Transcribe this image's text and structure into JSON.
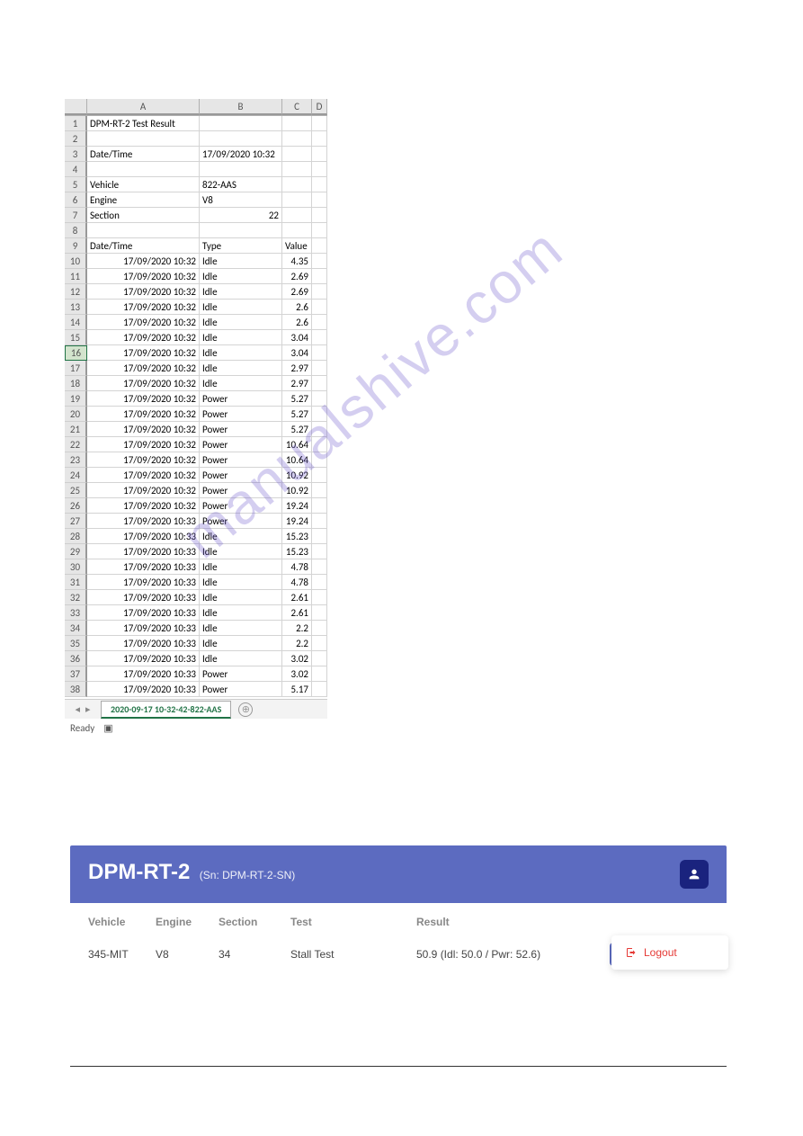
{
  "watermark": "manualshive.com",
  "spreadsheet": {
    "columns": [
      "A",
      "B",
      "C",
      "D"
    ],
    "selected_row": 16,
    "rows": [
      {
        "n": "1",
        "a": "DPM-RT-2 Test Result",
        "b": "",
        "c": "",
        "a_align": "left"
      },
      {
        "n": "2",
        "a": "",
        "b": "",
        "c": ""
      },
      {
        "n": "3",
        "a": "Date/Time",
        "b": "17/09/2020 10:32",
        "c": "",
        "a_align": "left"
      },
      {
        "n": "4",
        "a": "",
        "b": "",
        "c": ""
      },
      {
        "n": "5",
        "a": "Vehicle",
        "b": "822-AAS",
        "c": "",
        "a_align": "left"
      },
      {
        "n": "6",
        "a": "Engine",
        "b": "V8",
        "c": "",
        "a_align": "left"
      },
      {
        "n": "7",
        "a": "Section",
        "b": "22",
        "c": "",
        "a_align": "left",
        "b_align": "right"
      },
      {
        "n": "8",
        "a": "",
        "b": "",
        "c": ""
      },
      {
        "n": "9",
        "a": "Date/Time",
        "b": "Type",
        "c": "Value",
        "a_align": "left"
      },
      {
        "n": "10",
        "a": "17/09/2020 10:32",
        "b": "Idle",
        "c": "4.35",
        "a_align": "right",
        "c_align": "right"
      },
      {
        "n": "11",
        "a": "17/09/2020 10:32",
        "b": "Idle",
        "c": "2.69",
        "a_align": "right",
        "c_align": "right"
      },
      {
        "n": "12",
        "a": "17/09/2020 10:32",
        "b": "Idle",
        "c": "2.69",
        "a_align": "right",
        "c_align": "right"
      },
      {
        "n": "13",
        "a": "17/09/2020 10:32",
        "b": "Idle",
        "c": "2.6",
        "a_align": "right",
        "c_align": "right"
      },
      {
        "n": "14",
        "a": "17/09/2020 10:32",
        "b": "Idle",
        "c": "2.6",
        "a_align": "right",
        "c_align": "right"
      },
      {
        "n": "15",
        "a": "17/09/2020 10:32",
        "b": "Idle",
        "c": "3.04",
        "a_align": "right",
        "c_align": "right"
      },
      {
        "n": "16",
        "a": "17/09/2020 10:32",
        "b": "Idle",
        "c": "3.04",
        "a_align": "right",
        "c_align": "right"
      },
      {
        "n": "17",
        "a": "17/09/2020 10:32",
        "b": "Idle",
        "c": "2.97",
        "a_align": "right",
        "c_align": "right"
      },
      {
        "n": "18",
        "a": "17/09/2020 10:32",
        "b": "Idle",
        "c": "2.97",
        "a_align": "right",
        "c_align": "right"
      },
      {
        "n": "19",
        "a": "17/09/2020 10:32",
        "b": "Power",
        "c": "5.27",
        "a_align": "right",
        "c_align": "right"
      },
      {
        "n": "20",
        "a": "17/09/2020 10:32",
        "b": "Power",
        "c": "5.27",
        "a_align": "right",
        "c_align": "right"
      },
      {
        "n": "21",
        "a": "17/09/2020 10:32",
        "b": "Power",
        "c": "5.27",
        "a_align": "right",
        "c_align": "right"
      },
      {
        "n": "22",
        "a": "17/09/2020 10:32",
        "b": "Power",
        "c": "10.64",
        "a_align": "right",
        "c_align": "right"
      },
      {
        "n": "23",
        "a": "17/09/2020 10:32",
        "b": "Power",
        "c": "10.64",
        "a_align": "right",
        "c_align": "right"
      },
      {
        "n": "24",
        "a": "17/09/2020 10:32",
        "b": "Power",
        "c": "10.92",
        "a_align": "right",
        "c_align": "right"
      },
      {
        "n": "25",
        "a": "17/09/2020 10:32",
        "b": "Power",
        "c": "10.92",
        "a_align": "right",
        "c_align": "right"
      },
      {
        "n": "26",
        "a": "17/09/2020 10:32",
        "b": "Power",
        "c": "19.24",
        "a_align": "right",
        "c_align": "right"
      },
      {
        "n": "27",
        "a": "17/09/2020 10:33",
        "b": "Power",
        "c": "19.24",
        "a_align": "right",
        "c_align": "right"
      },
      {
        "n": "28",
        "a": "17/09/2020 10:33",
        "b": "Idle",
        "c": "15.23",
        "a_align": "right",
        "c_align": "right"
      },
      {
        "n": "29",
        "a": "17/09/2020 10:33",
        "b": "Idle",
        "c": "15.23",
        "a_align": "right",
        "c_align": "right"
      },
      {
        "n": "30",
        "a": "17/09/2020 10:33",
        "b": "Idle",
        "c": "4.78",
        "a_align": "right",
        "c_align": "right"
      },
      {
        "n": "31",
        "a": "17/09/2020 10:33",
        "b": "Idle",
        "c": "4.78",
        "a_align": "right",
        "c_align": "right"
      },
      {
        "n": "32",
        "a": "17/09/2020 10:33",
        "b": "Idle",
        "c": "2.61",
        "a_align": "right",
        "c_align": "right"
      },
      {
        "n": "33",
        "a": "17/09/2020 10:33",
        "b": "Idle",
        "c": "2.61",
        "a_align": "right",
        "c_align": "right"
      },
      {
        "n": "34",
        "a": "17/09/2020 10:33",
        "b": "Idle",
        "c": "2.2",
        "a_align": "right",
        "c_align": "right"
      },
      {
        "n": "35",
        "a": "17/09/2020 10:33",
        "b": "Idle",
        "c": "2.2",
        "a_align": "right",
        "c_align": "right"
      },
      {
        "n": "36",
        "a": "17/09/2020 10:33",
        "b": "Idle",
        "c": "3.02",
        "a_align": "right",
        "c_align": "right"
      },
      {
        "n": "37",
        "a": "17/09/2020 10:33",
        "b": "Power",
        "c": "3.02",
        "a_align": "right",
        "c_align": "right"
      },
      {
        "n": "38",
        "a": "17/09/2020 10:33",
        "b": "Power",
        "c": "5.17",
        "a_align": "right",
        "c_align": "right"
      }
    ],
    "sheet_tab": "2020-09-17 10-32-42-822-AAS",
    "status": "Ready"
  },
  "webapp": {
    "title": "DPM-RT-2",
    "subtitle": "(Sn: DPM-RT-2-SN)",
    "logout_label": "Logout",
    "headers": {
      "vehicle": "Vehicle",
      "engine": "Engine",
      "section": "Section",
      "test": "Test",
      "result": "Result"
    },
    "row": {
      "vehicle": "345-MIT",
      "engine": "V8",
      "section": "34",
      "test": "Stall Test",
      "result": "50.9 (Idl: 50.0 / Pwr: 52.6)"
    }
  },
  "styling": {
    "excel_header_bg": "#e6e6e6",
    "excel_border": "#d4d4d4",
    "excel_accent": "#217346",
    "webapp_primary": "#5c6bc0",
    "webapp_user_badge": "#1a237e",
    "logout_color": "#e53935",
    "watermark_color": "rgba(100,80,200,0.28)"
  }
}
